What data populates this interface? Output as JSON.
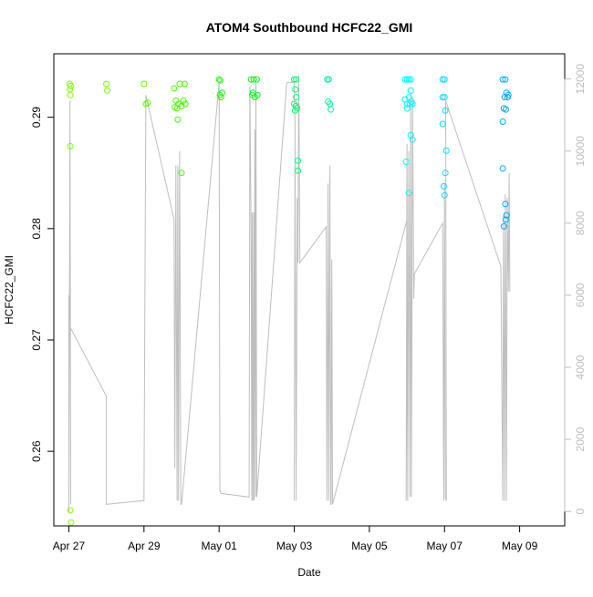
{
  "chart_data": {
    "type": "scatter",
    "title": "ATOM4 Southbound HCFC22_GMI",
    "xlabel": "Date",
    "ylabel": "HCFC22_GMI",
    "x_tick_labels": [
      "Apr 27",
      "Apr 29",
      "May 01",
      "May 03",
      "May 05",
      "May 07",
      "May 09"
    ],
    "x_tick_values": [
      0,
      2,
      4,
      6,
      8,
      10,
      12
    ],
    "xlim": [
      -0.4,
      13.2
    ],
    "ylim": [
      0.2533,
      0.2957
    ],
    "y_ticks": [
      0.26,
      0.27,
      0.28,
      0.29
    ],
    "y_tick_labels": [
      "0.26",
      "0.27",
      "0.28",
      "0.29"
    ],
    "y2_ticks": [
      0,
      2000,
      4000,
      6000,
      8000,
      10000,
      12000
    ],
    "y2_tick_labels": [
      "0",
      "2000",
      "4000",
      "6000",
      "8000",
      "10000",
      "12000"
    ],
    "y2lim": [
      -400,
      12700
    ],
    "y2_axis_color": "#bebebe",
    "line_color": "#bebebe",
    "points": [
      {
        "x": 0.02,
        "y": 0.293,
        "color": "#7fff00"
      },
      {
        "x": 0.03,
        "y": 0.2925,
        "color": "#7fff00"
      },
      {
        "x": 0.04,
        "y": 0.292,
        "color": "#7fff00"
      },
      {
        "x": 0.05,
        "y": 0.2928,
        "color": "#7fff00"
      },
      {
        "x": 0.04,
        "y": 0.2874,
        "color": "#7fff00"
      },
      {
        "x": 0.04,
        "y": 0.2547,
        "color": "#7fff00"
      },
      {
        "x": 0.06,
        "y": 0.2536,
        "color": "#7fff00"
      },
      {
        "x": 1.0,
        "y": 0.293,
        "color": "#77ff00"
      },
      {
        "x": 1.02,
        "y": 0.2924,
        "color": "#77ff00"
      },
      {
        "x": 2.0,
        "y": 0.293,
        "color": "#5fff00"
      },
      {
        "x": 2.05,
        "y": 0.2912,
        "color": "#5fff00"
      },
      {
        "x": 2.1,
        "y": 0.2913,
        "color": "#5fff00"
      },
      {
        "x": 2.8,
        "y": 0.2926,
        "color": "#44ff00"
      },
      {
        "x": 2.85,
        "y": 0.2915,
        "color": "#44ff00"
      },
      {
        "x": 2.88,
        "y": 0.2908,
        "color": "#44ff00"
      },
      {
        "x": 2.92,
        "y": 0.2912,
        "color": "#44ff00"
      },
      {
        "x": 2.95,
        "y": 0.293,
        "color": "#44ff00"
      },
      {
        "x": 3.0,
        "y": 0.291,
        "color": "#44ff00"
      },
      {
        "x": 3.05,
        "y": 0.2915,
        "color": "#44ff00"
      },
      {
        "x": 3.08,
        "y": 0.293,
        "color": "#44ff00"
      },
      {
        "x": 2.9,
        "y": 0.2898,
        "color": "#44ff00"
      },
      {
        "x": 3.0,
        "y": 0.285,
        "color": "#44ff00"
      },
      {
        "x": 2.82,
        "y": 0.2909,
        "color": "#44ff00"
      },
      {
        "x": 3.1,
        "y": 0.2912,
        "color": "#44ff00"
      },
      {
        "x": 4.0,
        "y": 0.2934,
        "color": "#22ff10"
      },
      {
        "x": 4.03,
        "y": 0.2933,
        "color": "#22ff10"
      },
      {
        "x": 4.05,
        "y": 0.2918,
        "color": "#22ff10"
      },
      {
        "x": 4.08,
        "y": 0.2922,
        "color": "#22ff10"
      },
      {
        "x": 4.02,
        "y": 0.292,
        "color": "#22ff10"
      },
      {
        "x": 4.85,
        "y": 0.2934,
        "color": "#00ff20"
      },
      {
        "x": 4.92,
        "y": 0.2934,
        "color": "#00ff20"
      },
      {
        "x": 5.0,
        "y": 0.2934,
        "color": "#00ff20"
      },
      {
        "x": 4.88,
        "y": 0.292,
        "color": "#00ff20"
      },
      {
        "x": 4.95,
        "y": 0.2918,
        "color": "#00ff20"
      },
      {
        "x": 5.02,
        "y": 0.292,
        "color": "#00ff20"
      },
      {
        "x": 4.9,
        "y": 0.2922,
        "color": "#00ff20"
      },
      {
        "x": 6.0,
        "y": 0.2934,
        "color": "#00ff70"
      },
      {
        "x": 6.05,
        "y": 0.2934,
        "color": "#00ff70"
      },
      {
        "x": 6.03,
        "y": 0.2925,
        "color": "#00ff70"
      },
      {
        "x": 6.05,
        "y": 0.2918,
        "color": "#00ff70"
      },
      {
        "x": 6.0,
        "y": 0.2912,
        "color": "#00ff70"
      },
      {
        "x": 6.04,
        "y": 0.291,
        "color": "#00ff70"
      },
      {
        "x": 6.08,
        "y": 0.2908,
        "color": "#00ff70"
      },
      {
        "x": 6.1,
        "y": 0.2861,
        "color": "#00ff70"
      },
      {
        "x": 6.1,
        "y": 0.2852,
        "color": "#00ff70"
      },
      {
        "x": 6.02,
        "y": 0.2906,
        "color": "#00ff70"
      },
      {
        "x": 6.88,
        "y": 0.2934,
        "color": "#00ffa0"
      },
      {
        "x": 6.92,
        "y": 0.2934,
        "color": "#00ffa0"
      },
      {
        "x": 6.9,
        "y": 0.2914,
        "color": "#00ffa0"
      },
      {
        "x": 6.95,
        "y": 0.2912,
        "color": "#00ffa0"
      },
      {
        "x": 6.97,
        "y": 0.2907,
        "color": "#00ffa0"
      },
      {
        "x": 8.95,
        "y": 0.2934,
        "color": "#00ffff"
      },
      {
        "x": 9.0,
        "y": 0.2934,
        "color": "#00ffff"
      },
      {
        "x": 9.05,
        "y": 0.2934,
        "color": "#00ffff"
      },
      {
        "x": 9.1,
        "y": 0.2934,
        "color": "#00ffff"
      },
      {
        "x": 9.1,
        "y": 0.2924,
        "color": "#00ffff"
      },
      {
        "x": 8.95,
        "y": 0.2916,
        "color": "#00ffff"
      },
      {
        "x": 9.0,
        "y": 0.2912,
        "color": "#00ffff"
      },
      {
        "x": 9.05,
        "y": 0.2918,
        "color": "#00ffff"
      },
      {
        "x": 9.12,
        "y": 0.2914,
        "color": "#00ffff"
      },
      {
        "x": 9.0,
        "y": 0.2908,
        "color": "#00ffff"
      },
      {
        "x": 9.15,
        "y": 0.2912,
        "color": "#00ffff"
      },
      {
        "x": 9.1,
        "y": 0.2884,
        "color": "#00ffff"
      },
      {
        "x": 9.15,
        "y": 0.288,
        "color": "#00ffff"
      },
      {
        "x": 8.98,
        "y": 0.286,
        "color": "#00ffff"
      },
      {
        "x": 9.05,
        "y": 0.2832,
        "color": "#00ffff"
      },
      {
        "x": 9.08,
        "y": 0.2912,
        "color": "#00ffff"
      },
      {
        "x": 9.95,
        "y": 0.2934,
        "color": "#00ddff"
      },
      {
        "x": 10.0,
        "y": 0.2934,
        "color": "#00ddff"
      },
      {
        "x": 9.95,
        "y": 0.2918,
        "color": "#00ddff"
      },
      {
        "x": 10.0,
        "y": 0.2918,
        "color": "#00ddff"
      },
      {
        "x": 10.02,
        "y": 0.2906,
        "color": "#00ddff"
      },
      {
        "x": 9.95,
        "y": 0.2894,
        "color": "#00ddff"
      },
      {
        "x": 10.05,
        "y": 0.287,
        "color": "#00ddff"
      },
      {
        "x": 10.02,
        "y": 0.285,
        "color": "#00ddff"
      },
      {
        "x": 9.98,
        "y": 0.2838,
        "color": "#00ddff"
      },
      {
        "x": 10.0,
        "y": 0.283,
        "color": "#00ddff"
      },
      {
        "x": 11.55,
        "y": 0.2934,
        "color": "#00aaff"
      },
      {
        "x": 11.62,
        "y": 0.2934,
        "color": "#00aaff"
      },
      {
        "x": 11.7,
        "y": 0.292,
        "color": "#00aaff"
      },
      {
        "x": 11.6,
        "y": 0.2918,
        "color": "#00aaff"
      },
      {
        "x": 11.65,
        "y": 0.2922,
        "color": "#00aaff"
      },
      {
        "x": 11.58,
        "y": 0.2908,
        "color": "#00aaff"
      },
      {
        "x": 11.63,
        "y": 0.2907,
        "color": "#00aaff"
      },
      {
        "x": 11.55,
        "y": 0.2896,
        "color": "#00aaff"
      },
      {
        "x": 11.55,
        "y": 0.2854,
        "color": "#00aaff"
      },
      {
        "x": 11.62,
        "y": 0.2822,
        "color": "#00aaff"
      },
      {
        "x": 11.65,
        "y": 0.2812,
        "color": "#00aaff"
      },
      {
        "x": 11.63,
        "y": 0.2808,
        "color": "#00aaff"
      },
      {
        "x": 11.58,
        "y": 0.2802,
        "color": "#00aaff"
      },
      {
        "x": 11.68,
        "y": 0.2918,
        "color": "#00aaff"
      }
    ],
    "line_series": [
      [
        0.0,
        6000
      ],
      [
        0.0,
        0
      ],
      [
        0.03,
        11400
      ],
      [
        0.05,
        200
      ],
      [
        0.04,
        5100
      ],
      [
        1.0,
        3200
      ],
      [
        1.0,
        200
      ],
      [
        2.0,
        300
      ],
      [
        2.05,
        11550
      ],
      [
        2.8,
        8100
      ],
      [
        2.82,
        1200
      ],
      [
        2.85,
        9600
      ],
      [
        2.88,
        300
      ],
      [
        2.9,
        9600
      ],
      [
        2.92,
        300
      ],
      [
        2.95,
        10000
      ],
      [
        2.98,
        200
      ],
      [
        3.0,
        200
      ],
      [
        4.0,
        11900
      ],
      [
        4.02,
        600
      ],
      [
        4.05,
        500
      ],
      [
        4.8,
        400
      ],
      [
        4.82,
        11800
      ],
      [
        4.85,
        7900
      ],
      [
        4.87,
        300
      ],
      [
        4.88,
        8300
      ],
      [
        4.9,
        300
      ],
      [
        4.92,
        8300
      ],
      [
        4.93,
        300
      ],
      [
        4.95,
        10600
      ],
      [
        4.97,
        400
      ],
      [
        4.98,
        12000
      ],
      [
        5.0,
        400
      ],
      [
        5.8,
        11900
      ],
      [
        6.0,
        11900
      ],
      [
        6.02,
        10700
      ],
      [
        6.0,
        300
      ],
      [
        6.02,
        10200
      ],
      [
        6.05,
        300
      ],
      [
        6.08,
        8700
      ],
      [
        6.1,
        6900
      ],
      [
        6.12,
        12100
      ],
      [
        6.15,
        6900
      ],
      [
        6.85,
        7900
      ],
      [
        6.87,
        300
      ],
      [
        6.9,
        9100
      ],
      [
        6.92,
        300
      ],
      [
        6.95,
        9600
      ],
      [
        6.97,
        200
      ],
      [
        6.98,
        200
      ],
      [
        7.0,
        7000
      ],
      [
        7.02,
        200
      ],
      [
        9.0,
        8100
      ],
      [
        9.0,
        5200
      ],
      [
        8.98,
        300
      ],
      [
        9.0,
        10200
      ],
      [
        9.02,
        300
      ],
      [
        9.05,
        10000
      ],
      [
        9.08,
        400
      ],
      [
        9.1,
        11600
      ],
      [
        9.12,
        400
      ],
      [
        9.15,
        11500
      ],
      [
        9.18,
        5900
      ],
      [
        9.2,
        6600
      ],
      [
        9.95,
        8000
      ],
      [
        9.98,
        300
      ],
      [
        10.0,
        9100
      ],
      [
        10.02,
        400
      ],
      [
        10.05,
        300
      ],
      [
        10.03,
        11400
      ],
      [
        11.5,
        6800
      ],
      [
        11.55,
        300
      ],
      [
        11.57,
        8200
      ],
      [
        11.6,
        300
      ],
      [
        11.62,
        8800
      ],
      [
        11.65,
        300
      ],
      [
        11.67,
        8700
      ],
      [
        11.7,
        6100
      ],
      [
        11.72,
        9400
      ],
      [
        11.74,
        6100
      ]
    ]
  }
}
